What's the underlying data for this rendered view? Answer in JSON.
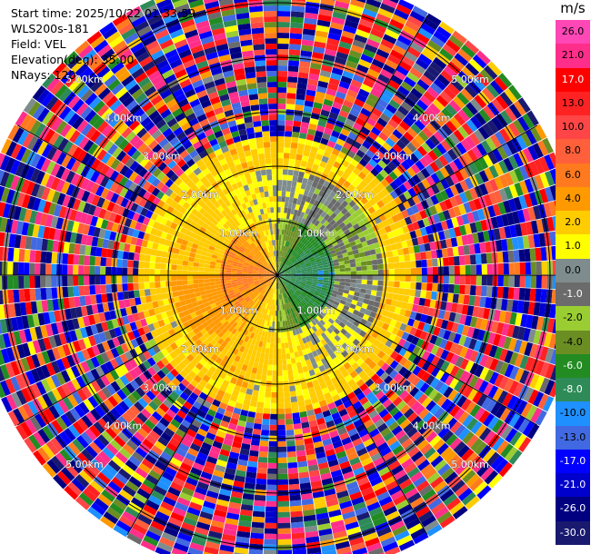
{
  "header": {
    "start_time": "Start time: 2025/10/22 01:33:59",
    "station": "WLS200s-181",
    "field": "Field: VEL",
    "elevation": "Elevation(deg): 35.00",
    "nrays": "NRays: 120"
  },
  "chart_data": {
    "type": "heatmap",
    "projection": "polar (PPI scan)",
    "field": "VEL",
    "unit": "m/s",
    "nrays": 120,
    "elevation_deg": 35.0,
    "range_rings_km": [
      1.0,
      2.0,
      3.0,
      4.0,
      5.0
    ],
    "ring_labels": [
      "1.00km",
      "2.00km",
      "3.00km",
      "4.00km",
      "5.00km"
    ],
    "spokes_deg": [
      0,
      30,
      60,
      90,
      120,
      150,
      180,
      210,
      240,
      270,
      300,
      330
    ],
    "max_range_km": 5.5,
    "approx_field_regions": [
      {
        "range_km": [
          0.0,
          1.0
        ],
        "values_m_s": [
          -8.0,
          2.0
        ],
        "description": "low velocities, green/gray with yellow in west"
      },
      {
        "range_km": [
          1.0,
          2.0
        ],
        "values_m_s": [
          -2.0,
          4.0
        ],
        "description": "olive/gray ring, yellow band in west and south"
      },
      {
        "range_km": [
          2.0,
          2.6
        ],
        "values_m_s": [
          1.0,
          4.0
        ],
        "description": "yellow band, strongest toward east and south"
      },
      {
        "range_km": [
          2.6,
          5.5
        ],
        "values_m_s": [
          -30.0,
          26.0
        ],
        "description": "noisy, all colors"
      }
    ],
    "colorbar": {
      "unit": "m/s",
      "ticks": [
        "26.0",
        "21.0",
        "17.0",
        "13.0",
        "10.0",
        "8.0",
        "6.0",
        "4.0",
        "2.0",
        "1.0",
        "0.0",
        "-1.0",
        "-2.0",
        "-4.0",
        "-6.0",
        "-8.0",
        "-10.0",
        "-13.0",
        "-17.0",
        "-21.0",
        "-26.0",
        "-30.0"
      ],
      "colors": [
        "#ff47b5",
        "#ff2e8a",
        "#ff0000",
        "#ff2222",
        "#ff4545",
        "#ff5f3a",
        "#ff7a1f",
        "#ff9900",
        "#ffcc00",
        "#ffff00",
        "#7f8c8d",
        "#6b6b6b",
        "#9acd32",
        "#6b8e23",
        "#228b22",
        "#2e8b57",
        "#1e90ff",
        "#4169e1",
        "#0000ff",
        "#0000cd",
        "#000080",
        "#191970"
      ]
    }
  }
}
